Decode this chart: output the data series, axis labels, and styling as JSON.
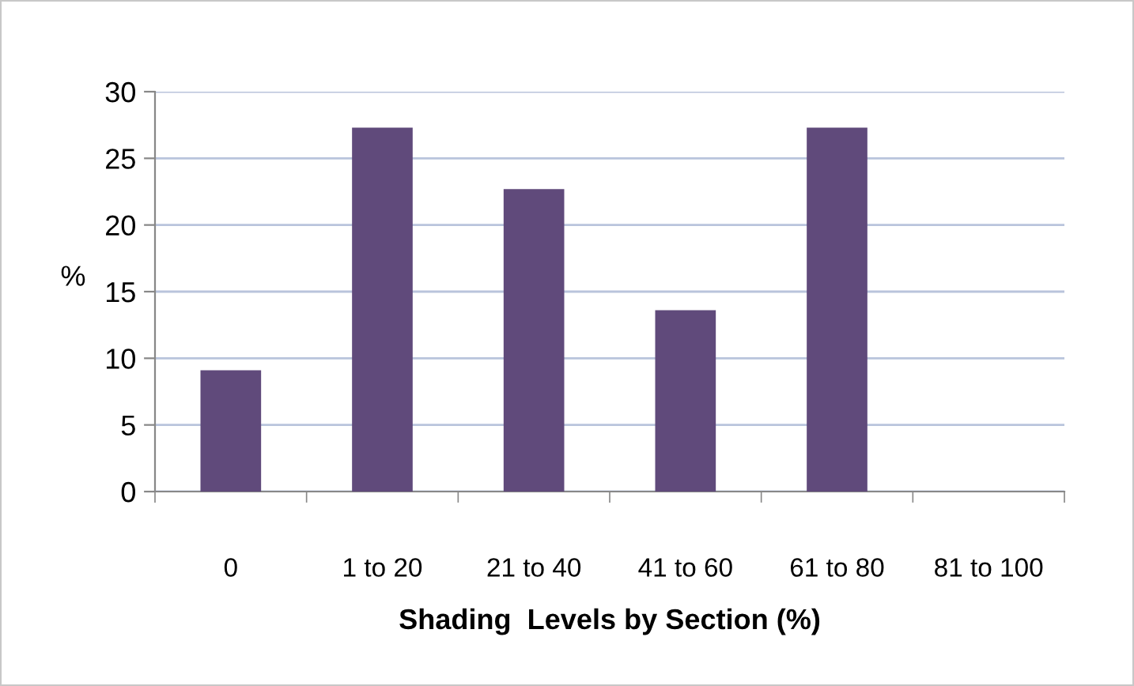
{
  "chart_data": {
    "type": "bar",
    "xlabel": "Shading  Levels by Section (%)",
    "ylabel": "%",
    "categories": [
      "0",
      "1 to 20",
      "21 to 40",
      "41 to 60",
      "61 to 80",
      "81 to 100"
    ],
    "values": [
      9.1,
      27.3,
      22.7,
      13.6,
      27.3,
      0
    ],
    "color": "#604a7b",
    "ylim": [
      0,
      30
    ],
    "yticks": [
      0,
      5,
      10,
      15,
      20,
      25,
      30
    ],
    "grid": "y"
  }
}
